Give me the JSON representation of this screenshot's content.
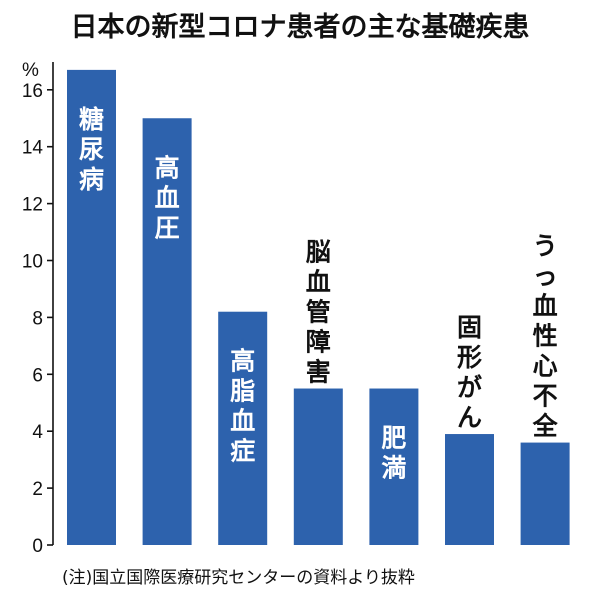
{
  "chart_data": {
    "type": "bar",
    "title": "日本の新型コロナ患者の主な基礎疾患",
    "ylabel": "%",
    "ylim": [
      0,
      17
    ],
    "yticks": [
      0,
      2,
      4,
      6,
      8,
      10,
      12,
      14,
      16
    ],
    "categories": [
      "糖尿病",
      "高血圧",
      "高脂血症",
      "脳血管障害",
      "肥満",
      "固形がん",
      "うっ血性心不全"
    ],
    "values": [
      16.7,
      15.0,
      8.2,
      5.5,
      5.5,
      3.9,
      3.6
    ],
    "bar_color": "#2d62ad",
    "note": "(注)国立国際医療研究センターの資料より抜粋"
  }
}
